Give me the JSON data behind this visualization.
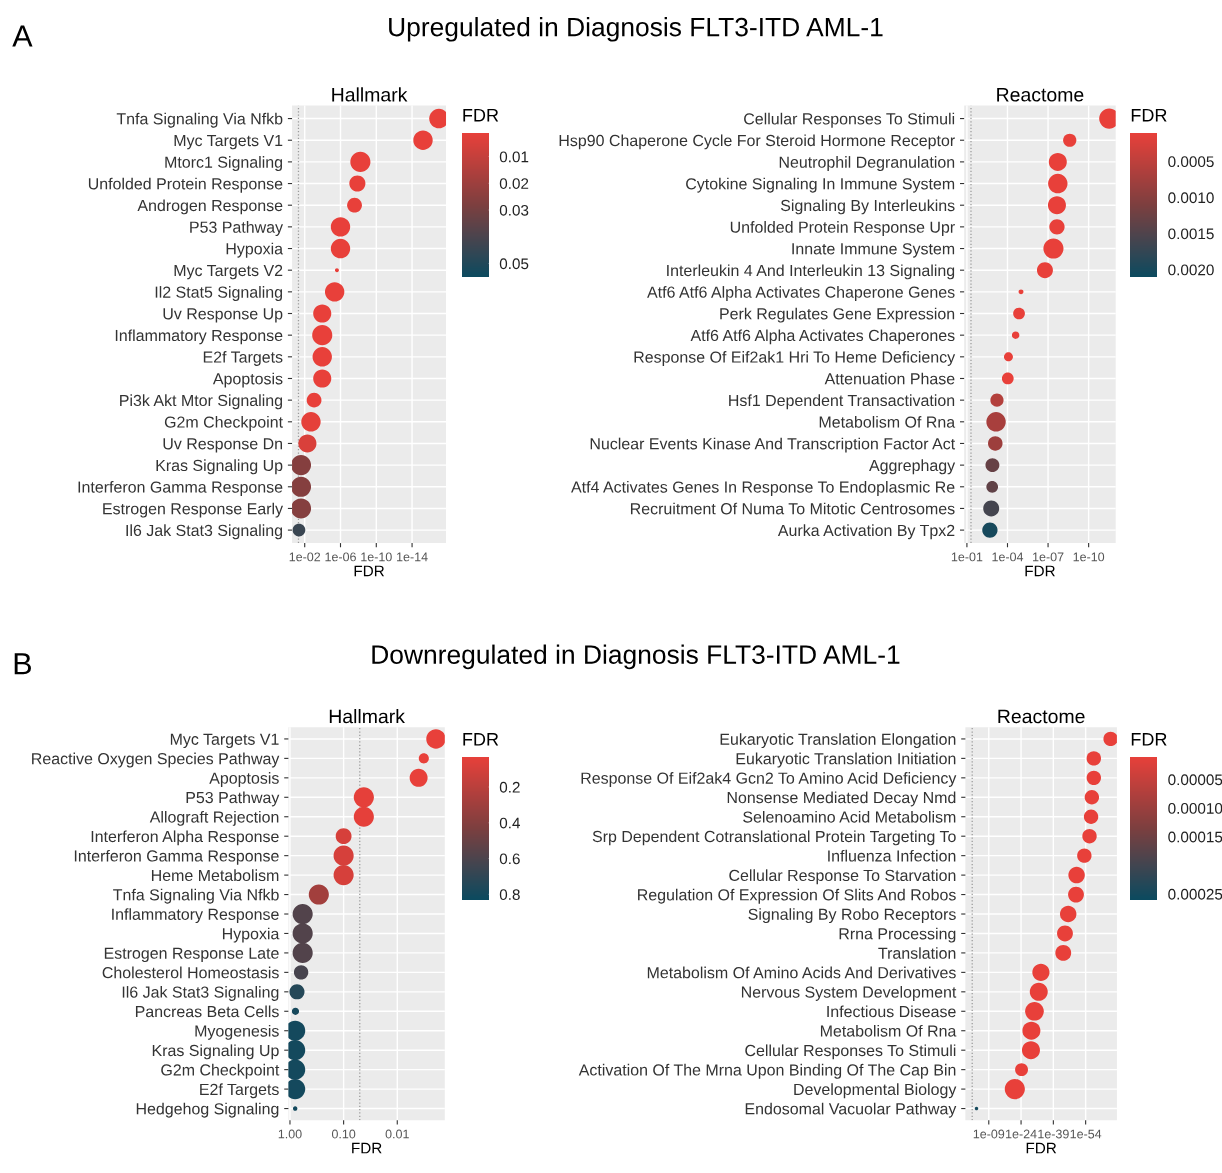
{
  "chart_data": [
    {
      "type": "bubble",
      "orientation": "horizontal",
      "title": "Hallmark",
      "xlabel": "FDR",
      "clabel": "FDR",
      "log": "x",
      "grid": true,
      "annotations": [
        "A",
        "Upregulated in Diagnosis FLT3-ITD AML-1"
      ],
      "categories": [
        "Tnfa Signaling Via Nfkb",
        "Myc Targets V1",
        "Mtorc1 Signaling",
        "Unfolded Protein Response",
        "Androgen Response",
        "P53 Pathway",
        "Hypoxia",
        "Myc Targets V2",
        "Il2 Stat5 Signaling",
        "Uv Response Up",
        "Inflammatory Response",
        "E2f Targets",
        "Apoptosis",
        "Pi3k Akt Mtor Signaling",
        "G2m Checkpoint",
        "Uv Response Dn",
        "Kras Signaling Up",
        "Interferon Gamma Response",
        "Estrogen Response Early",
        "Il6 Jak Stat3 Signaling"
      ],
      "values": [
        1e-17,
        6e-16,
        6e-09,
        1.3e-08,
        2.7e-08,
        1e-06,
        1e-06,
        2.5e-06,
        4.5e-06,
        0.00011,
        0.00011,
        0.00011,
        0.00011,
        0.0009,
        0.002,
        0.005,
        0.026,
        0.026,
        0.026,
        0.044
      ],
      "sizes": [
        0.93,
        0.93,
        1,
        0.64,
        0.54,
        0.93,
        0.93,
        0.04,
        0.93,
        0.81,
        1,
        0.93,
        0.81,
        0.54,
        0.93,
        0.81,
        1,
        1,
        1,
        0.4
      ],
      "cvalues": [
        0.001,
        0.001,
        0.001,
        0.001,
        0.001,
        0.001,
        0.001,
        0.001,
        0.001,
        0.001,
        0.001,
        0.001,
        0.001,
        0.001,
        0.002,
        0.005,
        0.026,
        0.026,
        0.026,
        0.044
      ],
      "clim": [
        0.001,
        0.055
      ],
      "cticks": [
        0.01,
        0.02,
        0.03,
        0.05
      ],
      "xlim": [
        0.26,
        1.6e-18
      ],
      "xticks": [
        {
          "value": 0.01,
          "label": "1e-02"
        },
        {
          "value": 1e-06,
          "label": "1e-06"
        },
        {
          "value": 1e-10,
          "label": "1e-10"
        },
        {
          "value": 1e-14,
          "label": "1e-14"
        }
      ],
      "ref_lines": [
        {
          "axis": "x",
          "value": 0.05,
          "color": "#9a9a9a",
          "line_style": "dotted"
        }
      ]
    },
    {
      "type": "bubble",
      "orientation": "horizontal",
      "title": "Reactome",
      "xlabel": "FDR",
      "clabel": "FDR",
      "log": "x",
      "grid": true,
      "categories": [
        "Cellular Responses To Stimuli",
        "Hsp90 Chaperone Cycle For Steroid Hormone Receptor",
        "Neutrophil Degranulation",
        "Cytokine Signaling In Immune System",
        "Signaling By Interleukins",
        "Unfolded Protein Response Upr",
        "Innate Immune System",
        "Interleukin 4 And Interleukin 13 Signaling",
        "Atf6 Atf6 Alpha Activates Chaperone Genes",
        "Perk Regulates Gene Expression",
        "Atf6 Atf6 Alpha Activates Chaperones",
        "Response Of Eif2ak1 Hri To Heme Deficiency",
        "Attenuation Phase",
        "Hsf1 Dependent Transactivation",
        "Metabolism Of Rna",
        "Nuclear Events Kinase And Transcription Factor Act",
        "Aggrephagy",
        "Atf4 Activates Genes In Response To Endoplasmic Re",
        "Recruitment Of Numa To Mitotic Centrosomes",
        "Aurka Activation By Tpx2"
      ],
      "values": [
        3e-12,
        2.5e-09,
        1.9e-08,
        1.9e-08,
        2.2e-08,
        2.2e-08,
        4e-08,
        1.7e-07,
        1e-05,
        1.4e-05,
        2.5e-05,
        8.5e-05,
        9.5e-05,
        0.0006,
        0.0007,
        0.0008,
        0.0013,
        0.00135,
        0.0016,
        0.002
      ],
      "sizes": [
        1,
        0.43,
        0.8,
        0.93,
        0.8,
        0.58,
        1,
        0.63,
        0.06,
        0.34,
        0.14,
        0.2,
        0.34,
        0.43,
        0.93,
        0.52,
        0.48,
        0.34,
        0.63,
        0.58
      ],
      "cvalues": [
        0.0001,
        0.0001,
        0.0001,
        0.0001,
        0.0001,
        0.0001,
        0.0001,
        0.0001,
        0.0001,
        0.0001,
        0.0001,
        0.0001,
        0.0001,
        0.0006,
        0.0007,
        0.0008,
        0.0013,
        0.00135,
        0.0016,
        0.002
      ],
      "clim": [
        0.0001,
        0.0021
      ],
      "cticks": [
        {
          "value": 0.0005,
          "label": "0.0005"
        },
        {
          "value": 0.001,
          "label": "0.0010"
        },
        {
          "value": 0.0015,
          "label": "0.0015"
        },
        {
          "value": 0.002,
          "label": "0.0020"
        }
      ],
      "xlim": [
        0.16,
        1e-12
      ],
      "xticks": [
        {
          "value": 0.1,
          "label": "1e-01"
        },
        {
          "value": 0.0001,
          "label": "1e-04"
        },
        {
          "value": 1e-07,
          "label": "1e-07"
        },
        {
          "value": 1e-10,
          "label": "1e-10"
        }
      ],
      "ref_lines": [
        {
          "axis": "x",
          "value": 0.05,
          "color": "#9a9a9a",
          "line_style": "dotted"
        }
      ]
    },
    {
      "type": "bubble",
      "orientation": "horizontal",
      "title": "Hallmark",
      "xlabel": "FDR",
      "clabel": "FDR",
      "log": "x",
      "grid": true,
      "annotations": [
        "B",
        "Downregulated in Diagnosis FLT3-ITD AML-1"
      ],
      "categories": [
        "Myc Targets V1",
        "Reactive Oxygen Species Pathway",
        "Apoptosis",
        "P53 Pathway",
        "Allograft Rejection",
        "Interferon Alpha Response",
        "Interferon Gamma Response",
        "Heme Metabolism",
        "Tnfa Signaling Via Nfkb",
        "Inflammatory Response",
        "Hypoxia",
        "Estrogen Response Late",
        "Cholesterol Homeostasis",
        "Il6 Jak Stat3 Signaling",
        "Pancreas Beta Cells",
        "Myogenesis",
        "Kras Signaling Up",
        "G2m Checkpoint",
        "E2f Targets",
        "Hedgehog Signaling"
      ],
      "values": [
        0.0019,
        0.0032,
        0.004,
        0.042,
        0.042,
        0.1,
        0.1,
        0.1,
        0.29,
        0.58,
        0.58,
        0.58,
        0.62,
        0.74,
        0.79,
        0.8,
        0.8,
        0.8,
        0.8,
        0.8
      ],
      "sizes": [
        0.93,
        0.25,
        0.8,
        1,
        1,
        0.62,
        1,
        1,
        1,
        1,
        1,
        1,
        0.51,
        0.56,
        0.13,
        1,
        1,
        1,
        1,
        0.05
      ],
      "cvalues": [
        0.03,
        0.03,
        0.03,
        0.042,
        0.042,
        0.1,
        0.1,
        0.1,
        0.29,
        0.58,
        0.58,
        0.58,
        0.62,
        0.74,
        0.79,
        0.8,
        0.8,
        0.8,
        0.8,
        0.8
      ],
      "clim": [
        0.03,
        0.83
      ],
      "cticks": [
        0.2,
        0.4,
        0.6,
        0.8
      ],
      "xlim": [
        1.07,
        0.0013
      ],
      "xticks": [
        {
          "value": 1,
          "label": "1.00"
        },
        {
          "value": 0.1,
          "label": "0.10"
        },
        0.01
      ],
      "ref_lines": [
        {
          "axis": "x",
          "value": 0.05,
          "color": "#9a9a9a",
          "line_style": "dotted"
        }
      ]
    },
    {
      "type": "bubble",
      "orientation": "horizontal",
      "title": "Reactome",
      "xlabel": "FDR",
      "clabel": "FDR",
      "log": "x",
      "grid": true,
      "categories": [
        "Eukaryotic Translation Elongation",
        "Eukaryotic Translation Initiation",
        "Response Of Eif2ak4 Gcn2 To Amino Acid Deficiency",
        "Nonsense Mediated Decay Nmd",
        "Selenoamino Acid Metabolism",
        "Srp Dependent Cotranslational Protein Targeting To",
        "Influenza Infection",
        "Cellular Response To Starvation",
        "Regulation Of Expression Of Slits And Robos",
        "Signaling By Robo Receptors",
        "Rrna Processing",
        "Translation",
        "Metabolism Of Amino Acids And Derivatives",
        "Nervous System Development",
        "Infectious Disease",
        "Metabolism Of Rna",
        "Cellular Responses To Stimuli",
        "Activation Of The Mrna Upon Binding Of The Cap Bin",
        "Developmental Biology",
        "Endosomal Vacuolar Pathway"
      ],
      "values": [
        2.5e-66,
        1.6e-58,
        1.6e-58,
        1.3e-57,
        3e-57,
        1.6e-56,
        4e-54,
        1.6e-50,
        3e-50,
        1.3e-46,
        4e-45,
        2.5e-44,
        6e-34,
        6e-33,
        6e-31,
        1.6e-29,
        2.5e-29,
        6e-25,
        8e-22,
        0.0005
      ],
      "sizes": [
        0.51,
        0.51,
        0.51,
        0.51,
        0.51,
        0.51,
        0.51,
        0.67,
        0.62,
        0.67,
        0.62,
        0.62,
        0.73,
        0.8,
        0.86,
        0.8,
        0.8,
        0.41,
        1,
        0.03
      ],
      "cvalues": [
        1e-05,
        1e-05,
        1e-05,
        1e-05,
        1e-05,
        1e-05,
        1e-05,
        1e-05,
        1e-05,
        1e-05,
        1e-05,
        1e-05,
        1e-05,
        1e-05,
        1e-05,
        1e-05,
        1e-05,
        1e-05,
        1e-05,
        0.00025
      ],
      "clim": [
        1e-05,
        0.00026
      ],
      "cticks": [
        {
          "value": 5e-05,
          "label": "0.00005"
        },
        {
          "value": 0.0001,
          "label": "0.00010"
        },
        {
          "value": 0.00015,
          "label": "0.00015"
        },
        {
          "value": 0.00025,
          "label": "0.00025"
        }
      ],
      "xlim": [
        74,
        3e-69
      ],
      "xticks": [
        {
          "value": 1e-09,
          "label": "1e-09"
        },
        {
          "value": 1e-24,
          "label": "1e-24"
        },
        {
          "value": 1e-39,
          "label": "1e-39"
        },
        {
          "value": 1e-54,
          "label": "1e-54"
        }
      ],
      "ref_lines": [
        {
          "axis": "x",
          "value": 0.05,
          "color": "#9a9a9a",
          "line_style": "dotted"
        }
      ]
    }
  ]
}
